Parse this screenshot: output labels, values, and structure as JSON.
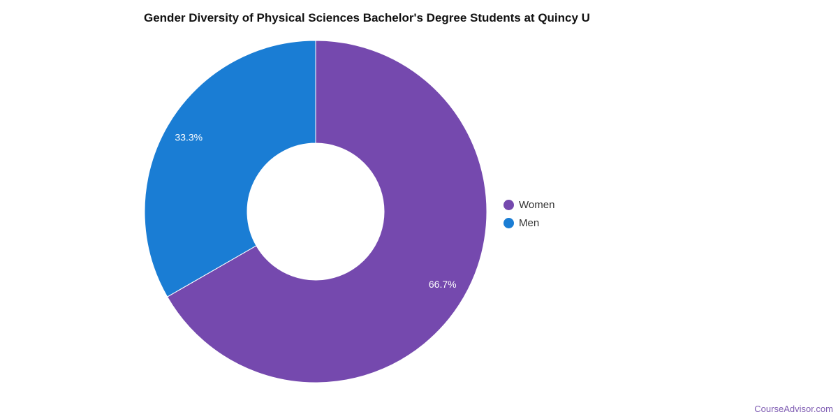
{
  "chart_data": {
    "type": "pie",
    "title": "Gender Diversity of Physical Sciences Bachelor's Degree Students at Quincy U",
    "donut": true,
    "legend_position": "right",
    "slices": [
      {
        "label": "Women",
        "value": 66.7,
        "display": "66.7%",
        "color": "#7549ae"
      },
      {
        "label": "Men",
        "value": 33.3,
        "display": "33.3%",
        "color": "#1a7dd4"
      }
    ]
  },
  "credit": "CourseAdvisor.com"
}
